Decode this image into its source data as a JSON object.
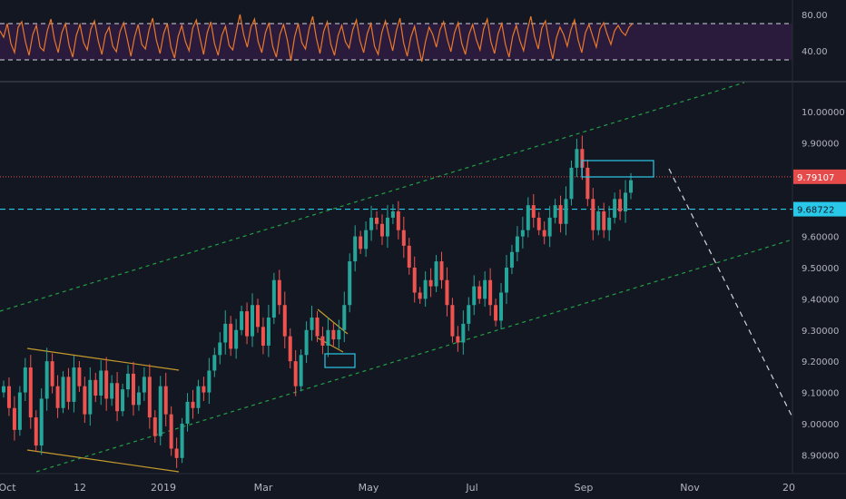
{
  "colors": {
    "background": "#131722",
    "rsi_line": "#e8782a",
    "rsi_band": "#2a1b3d",
    "up_candle": "#26a69a",
    "down_candle": "#ef5350",
    "channel": "#22a045",
    "wedge": "#c59a2c",
    "resistance_line": "#e54b4b",
    "support_line": "#29c8e8",
    "axis_text": "#b2b5be",
    "separator": "#4a4e5a",
    "projection": "#d1d4dc"
  },
  "chart_data": [
    {
      "type": "line",
      "panel": "rsi",
      "ylim": [
        10,
        92
      ],
      "y_ticks": [
        80,
        40
      ],
      "y_tick_labels": [
        "80.00",
        "40.00"
      ],
      "band": [
        30,
        70
      ],
      "series": [
        {
          "values": [
            62,
            55,
            70,
            48,
            38,
            66,
            72,
            50,
            35,
            58,
            68,
            44,
            40,
            62,
            75,
            52,
            38,
            60,
            70,
            46,
            33,
            57,
            69,
            49,
            41,
            64,
            73,
            51,
            36,
            58,
            66,
            45,
            39,
            61,
            71,
            53,
            34,
            55,
            69,
            47,
            42,
            63,
            76,
            52,
            37,
            59,
            70,
            44,
            32,
            56,
            68,
            50,
            40,
            65,
            74,
            54,
            36,
            60,
            72,
            48,
            35,
            57,
            67,
            46,
            41,
            62,
            80,
            58,
            44,
            66,
            75,
            50,
            38,
            60,
            71,
            45,
            33,
            58,
            69,
            52,
            29,
            55,
            70,
            49,
            42,
            64,
            78,
            54,
            37,
            61,
            72,
            47,
            35,
            57,
            68,
            50,
            43,
            63,
            74,
            51,
            38,
            59,
            70,
            45,
            36,
            60,
            73,
            56,
            40,
            62,
            76,
            49,
            34,
            55,
            67,
            46,
            28,
            50,
            66,
            58,
            44,
            63,
            72,
            53,
            39,
            60,
            71,
            48,
            36,
            58,
            69,
            52,
            41,
            64,
            75,
            50,
            37,
            59,
            70,
            47,
            33,
            56,
            68,
            51,
            40,
            62,
            78,
            56,
            42,
            65,
            73,
            49,
            31,
            54,
            66,
            58,
            45,
            63,
            74,
            52,
            38,
            60,
            69,
            56,
            44,
            64,
            71,
            58,
            47,
            62,
            68,
            61,
            57,
            66,
            70
          ]
        }
      ]
    },
    {
      "type": "line",
      "panel": "price",
      "y_ticks": [
        10.0,
        9.9,
        9.6,
        9.5,
        9.4,
        9.3,
        9.2,
        9.1,
        9.0,
        8.9
      ],
      "y_tick_labels": [
        "10.00000",
        "9.90000",
        "9.60000",
        "9.50000",
        "9.40000",
        "9.30000",
        "9.20000",
        "9.10000",
        "9.00000",
        "8.90000"
      ],
      "ylim": [
        8.84,
        10.09
      ],
      "x_tick_labels": [
        "Oct",
        "12",
        "2019",
        "Mar",
        "May",
        "Jul",
        "Sep",
        "Nov",
        "20"
      ],
      "price_labels": [
        {
          "name": "resistance",
          "value": 9.79107,
          "label": "9.79107"
        },
        {
          "name": "support",
          "value": 9.68722,
          "label": "9.68722"
        }
      ],
      "series": [
        {
          "values": [
            9.12,
            9.05,
            8.98,
            9.1,
            9.18,
            9.02,
            8.93,
            9.08,
            9.2,
            9.12,
            9.05,
            9.15,
            9.07,
            9.18,
            9.12,
            9.03,
            9.14,
            9.09,
            9.17,
            9.08,
            9.13,
            9.04,
            9.11,
            9.16,
            9.06,
            9.1,
            9.15,
            9.02,
            8.96,
            9.12,
            9.03,
            8.92,
            8.89,
            9.0,
            9.07,
            9.05,
            9.12,
            9.1,
            9.17,
            9.22,
            9.26,
            9.32,
            9.24,
            9.3,
            9.36,
            9.28,
            9.38,
            9.31,
            9.25,
            9.34,
            9.46,
            9.38,
            9.28,
            9.2,
            9.12,
            9.22,
            9.3,
            9.34,
            9.28,
            9.25,
            9.3,
            9.27,
            9.3,
            9.38,
            9.52,
            9.6,
            9.56,
            9.62,
            9.66,
            9.64,
            9.6,
            9.66,
            9.68,
            9.62,
            9.57,
            9.5,
            9.42,
            9.4,
            9.46,
            9.44,
            9.52,
            9.46,
            9.38,
            9.28,
            9.26,
            9.32,
            9.38,
            9.44,
            9.4,
            9.46,
            9.38,
            9.33,
            9.42,
            9.5,
            9.55,
            9.6,
            9.62,
            9.7,
            9.66,
            9.62,
            9.6,
            9.66,
            9.7,
            9.64,
            9.72,
            9.82,
            9.88,
            9.82,
            9.72,
            9.62,
            9.68,
            9.62,
            9.66,
            9.72,
            9.68,
            9.74,
            9.78
          ]
        }
      ]
    }
  ]
}
